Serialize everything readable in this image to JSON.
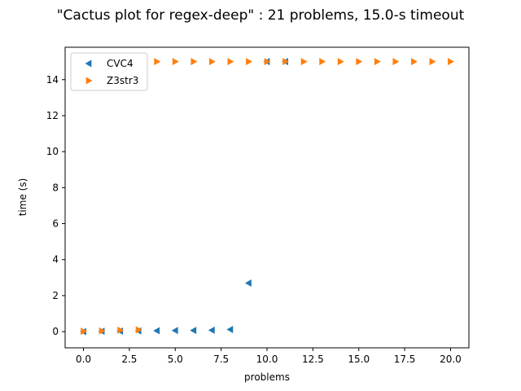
{
  "chart_data": {
    "type": "scatter",
    "title": "\"Cactus plot for regex-deep\" : 21 problems, 15.0-s timeout",
    "xlabel": "problems",
    "ylabel": "time (s)",
    "xlim": [
      -1.0,
      21.0
    ],
    "ylim": [
      -0.9,
      15.8
    ],
    "xticks": [
      0.0,
      2.5,
      5.0,
      7.5,
      10.0,
      12.5,
      15.0,
      17.5,
      20.0
    ],
    "xtick_labels": [
      "0.0",
      "2.5",
      "5.0",
      "7.5",
      "10.0",
      "12.5",
      "15.0",
      "17.5",
      "20.0"
    ],
    "yticks": [
      0,
      2,
      4,
      6,
      8,
      10,
      12,
      14
    ],
    "ytick_labels": [
      "0",
      "2",
      "4",
      "6",
      "8",
      "10",
      "12",
      "14"
    ],
    "grid": false,
    "legend_position": "top-left",
    "series": [
      {
        "name": "CVC4",
        "marker": "triangle-left",
        "color": "#1f77b4",
        "x": [
          0,
          1,
          2,
          3,
          4,
          5,
          6,
          7,
          8,
          9,
          10,
          11
        ],
        "y": [
          0.0,
          0.02,
          0.03,
          0.04,
          0.05,
          0.06,
          0.07,
          0.08,
          0.12,
          2.7,
          15.0,
          15.0
        ]
      },
      {
        "name": "Z3str3",
        "marker": "triangle-right",
        "color": "#ff7f0e",
        "x": [
          0,
          1,
          2,
          3,
          4,
          5,
          6,
          7,
          8,
          9,
          10,
          11,
          12,
          13,
          14,
          15,
          16,
          17,
          18,
          19,
          20
        ],
        "y": [
          0.02,
          0.04,
          0.08,
          0.1,
          15.0,
          15.0,
          15.0,
          15.0,
          15.0,
          15.0,
          15.0,
          15.0,
          15.0,
          15.0,
          15.0,
          15.0,
          15.0,
          15.0,
          15.0,
          15.0,
          15.0
        ]
      }
    ]
  }
}
